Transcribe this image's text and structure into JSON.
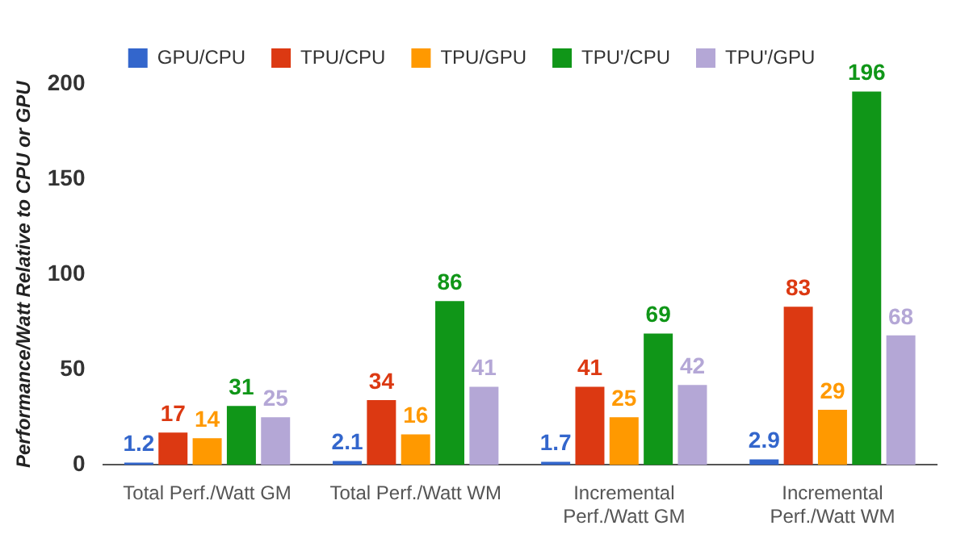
{
  "chart_data": {
    "type": "bar",
    "ylabel": "Performance/Watt Relative to CPU or GPU",
    "categories": [
      "Total Perf./Watt GM",
      "Total Perf./Watt WM",
      "Incremental Perf./Watt GM",
      "Incremental Perf./Watt WM"
    ],
    "series": [
      {
        "name": "GPU/CPU",
        "color": "#3366cc",
        "values": [
          1.2,
          2.1,
          1.7,
          2.9
        ]
      },
      {
        "name": "TPU/CPU",
        "color": "#dc3912",
        "values": [
          17,
          34,
          41,
          83
        ]
      },
      {
        "name": "TPU/GPU",
        "color": "#ff9900",
        "values": [
          14,
          16,
          25,
          29
        ]
      },
      {
        "name": "TPU'/CPU",
        "color": "#109618",
        "values": [
          31,
          86,
          69,
          196
        ]
      },
      {
        "name": "TPU'/GPU",
        "color": "#b4a7d6",
        "values": [
          25,
          41,
          42,
          68
        ]
      }
    ],
    "ylim": [
      0,
      200
    ],
    "yticks": [
      0,
      50,
      100,
      150,
      200
    ],
    "grid": false,
    "legend": "top",
    "data_labels": true
  }
}
